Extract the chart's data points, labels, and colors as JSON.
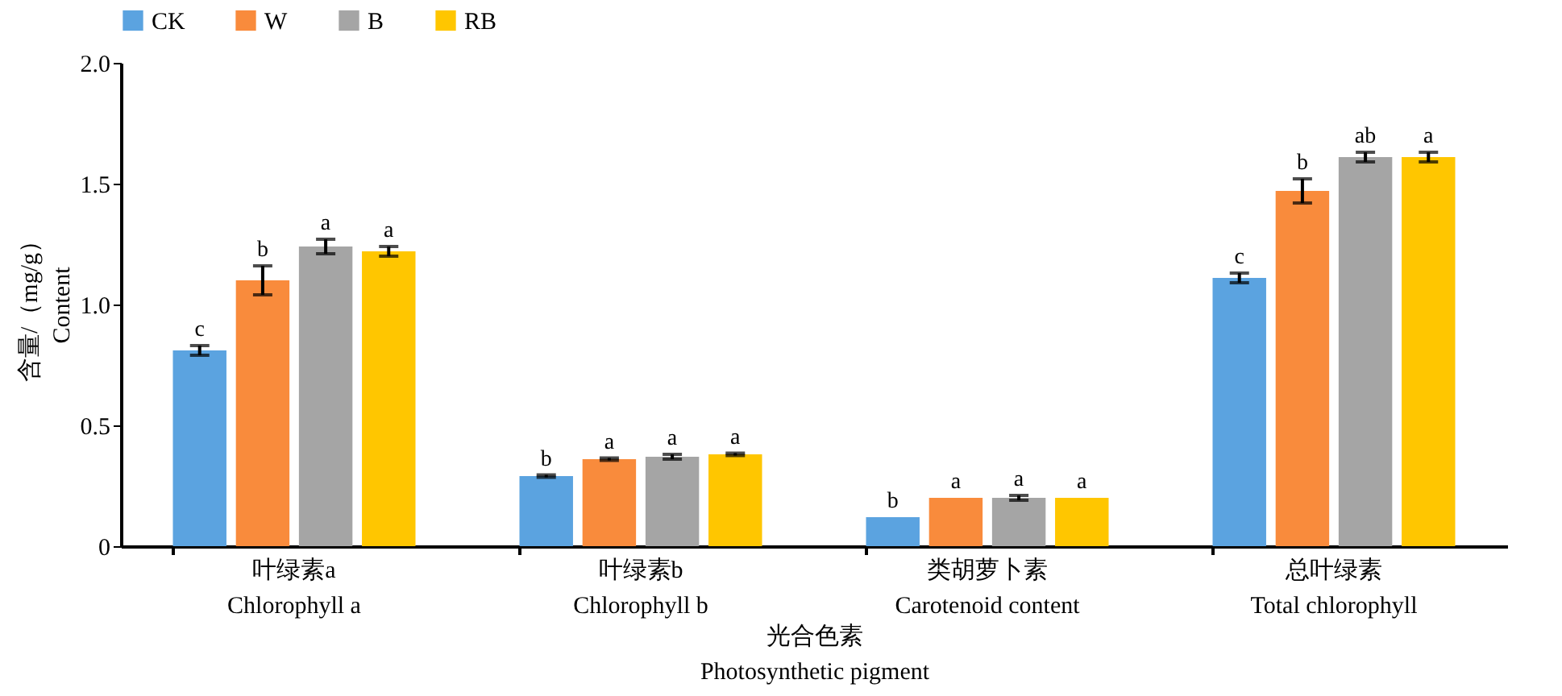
{
  "chart_data": {
    "type": "bar",
    "xlabel": "光合色素\nPhotosynthetic pigment",
    "ylabel": "含量/（mg/g）\nContent",
    "categories": [
      "叶绿素a\nChlorophyll a",
      "叶绿素b\nChlorophyll b",
      "类胡萝卜素\nCarotenoid content",
      "总叶绿素\nTotal chlorophyll"
    ],
    "series": [
      {
        "name": "CK",
        "color": "#5ba3e0",
        "values": [
          0.81,
          0.29,
          0.12,
          1.11
        ],
        "errors": [
          0.02,
          0.005,
          null,
          0.02
        ],
        "value_labels": [
          "c",
          "b",
          "b",
          "c"
        ]
      },
      {
        "name": "W",
        "color": "#f98b3c",
        "values": [
          1.1,
          0.36,
          0.2,
          1.47
        ],
        "errors": [
          0.06,
          0.005,
          null,
          0.05
        ],
        "value_labels": [
          "b",
          "a",
          "a",
          "b"
        ]
      },
      {
        "name": "B",
        "color": "#a5a5a5",
        "values": [
          1.24,
          0.37,
          0.2,
          1.61
        ],
        "errors": [
          0.03,
          0.01,
          0.01,
          0.02
        ],
        "value_labels": [
          "a",
          "a",
          "a",
          "ab"
        ]
      },
      {
        "name": "RB",
        "color": "#ffc600",
        "values": [
          1.22,
          0.38,
          0.2,
          1.61
        ],
        "errors": [
          0.02,
          0.005,
          null,
          0.02
        ],
        "value_labels": [
          "a",
          "a",
          "a",
          "a"
        ]
      }
    ],
    "ylim": [
      0,
      2
    ],
    "yticks": [
      0,
      {
        "value": 0.5,
        "label": "0.5"
      },
      {
        "value": 1,
        "label": "1.0"
      },
      {
        "value": 1.5,
        "label": "1.5"
      },
      {
        "value": 2,
        "label": "2.0"
      }
    ],
    "grid": false,
    "legend": "top"
  }
}
